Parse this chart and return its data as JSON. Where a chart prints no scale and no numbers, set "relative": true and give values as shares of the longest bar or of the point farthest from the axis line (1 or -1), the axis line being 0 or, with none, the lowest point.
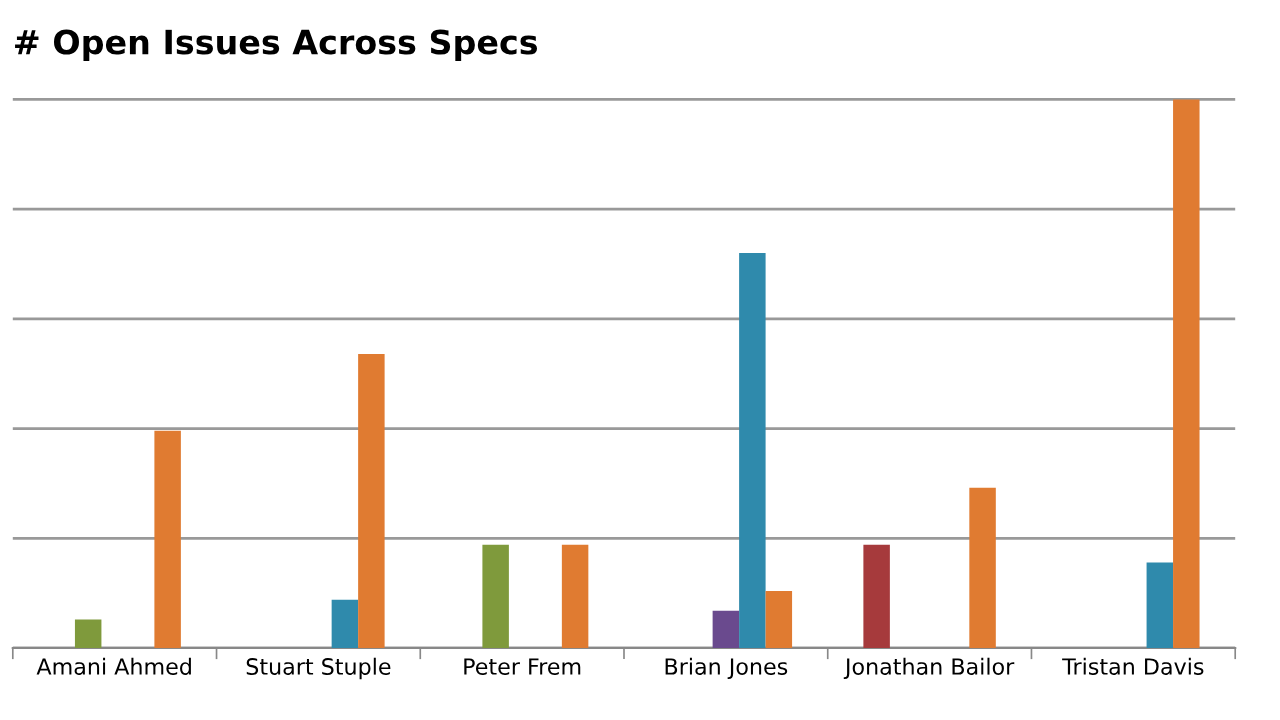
{
  "chart_data": {
    "type": "bar",
    "title": "# Open Issues Across Specs",
    "relative": true,
    "grid": "y",
    "legend": false,
    "categories": [
      "Amani Ahmed",
      "Stuart Stuple",
      "Peter Frem",
      "Brian Jones",
      "Jonathan Bailor",
      "Tristan Davis"
    ],
    "series": [
      {
        "color": "#a63a3c",
        "values": [
          null,
          null,
          null,
          null,
          0.188,
          null
        ]
      },
      {
        "color": "#7f9a3c",
        "values": [
          0.052,
          null,
          0.188,
          null,
          null,
          null
        ]
      },
      {
        "color": "#6a4a8e",
        "values": [
          null,
          null,
          null,
          0.068,
          null,
          null
        ]
      },
      {
        "color": "#2f8aac",
        "values": [
          null,
          0.088,
          null,
          0.72,
          null,
          0.156
        ]
      },
      {
        "color": "#e07b31",
        "values": [
          0.396,
          0.536,
          0.188,
          0.104,
          0.292,
          1
        ]
      }
    ]
  }
}
